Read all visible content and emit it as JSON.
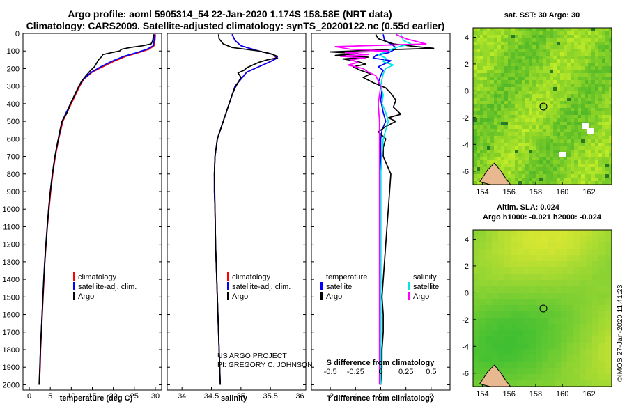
{
  "header": {
    "title_line1": "Argo profile: aoml 5905314_54 22-Jan-2020 1.174S 158.58E (NRT data)",
    "title_line2": "Climatology: CARS2009. Satellite-adjusted climatology: synTS_20200122.nc (0.55d earlier)"
  },
  "credits": {
    "project": "US ARGO PROJECT",
    "pi": "PI: GREGORY C. JOHNSON",
    "imos": "©IMOS 27-Jan-2020 11:41:23"
  },
  "colors": {
    "red": "#ff0000",
    "blue": "#0000ff",
    "black": "#000000",
    "cyan": "#00e5e5",
    "magenta": "#ff00ff"
  },
  "depth_axis": {
    "ticks": [
      0,
      100,
      200,
      300,
      400,
      500,
      600,
      700,
      800,
      900,
      1000,
      1100,
      1200,
      1300,
      1400,
      1500,
      1600,
      1700,
      1800,
      1900,
      2000
    ],
    "range": [
      0,
      2030
    ]
  },
  "chart_data": [
    {
      "type": "line",
      "name": "temperature-panel",
      "xlabel": "temperature (deg C)",
      "xlim": [
        -1.5,
        31.5
      ],
      "xticks": [
        0,
        5,
        10,
        15,
        20,
        25,
        30
      ],
      "legend": [
        "climatology",
        "satellite-adj. clim.",
        "Argo"
      ],
      "series": [
        {
          "name": "climatology",
          "color": "red",
          "depth": [
            5,
            40,
            70,
            90,
            110,
            130,
            160,
            190,
            220,
            260,
            300,
            350,
            400,
            450,
            500,
            550,
            600,
            700,
            800,
            900,
            1000,
            1100,
            1200,
            1300,
            1400,
            1500,
            1600,
            1700,
            1800,
            1900,
            2000
          ],
          "values": [
            30,
            29.9,
            29.7,
            28.5,
            26,
            23,
            20,
            17.5,
            15,
            13,
            12,
            11,
            10,
            9,
            8,
            7.5,
            7,
            6.2,
            5.6,
            5.1,
            4.7,
            4.3,
            4.0,
            3.7,
            3.5,
            3.3,
            3.1,
            2.9,
            2.7,
            2.6,
            2.4
          ]
        },
        {
          "name": "satellite-adj. clim.",
          "color": "blue",
          "depth": [
            5,
            40,
            70,
            90,
            110,
            130,
            160,
            190,
            220,
            260,
            300,
            350,
            400,
            450,
            500,
            550,
            600,
            700,
            800,
            900,
            1000,
            1100,
            1200,
            1300,
            1400,
            1500,
            1600,
            1700,
            1800,
            1900,
            2000
          ],
          "values": [
            29.8,
            29.7,
            29.5,
            28,
            25.5,
            22.5,
            19.5,
            17,
            14.8,
            12.9,
            11.8,
            10.8,
            9.8,
            8.8,
            7.8,
            7.4,
            6.9,
            6.1,
            5.5,
            5.0,
            4.6,
            4.25,
            3.95,
            3.65,
            3.45,
            3.25,
            3.05,
            2.85,
            2.65,
            2.55,
            2.35
          ]
        },
        {
          "name": "Argo",
          "color": "black",
          "depth": [
            5,
            20,
            40,
            60,
            70,
            80,
            90,
            100,
            110,
            120,
            130,
            150,
            170,
            190,
            210,
            240,
            270,
            300,
            350,
            400,
            450,
            500,
            550,
            600,
            700,
            800,
            900,
            1000,
            1200,
            1400,
            1600,
            1800,
            2000
          ],
          "values": [
            29.6,
            29.5,
            29.4,
            29.0,
            27,
            24,
            22,
            21.5,
            19.5,
            17.5,
            17.3,
            16.5,
            16,
            15.5,
            14.6,
            13.5,
            12.5,
            11.8,
            10.8,
            9.8,
            9.0,
            7.8,
            7.3,
            6.9,
            6.1,
            5.5,
            5.0,
            4.6,
            3.95,
            3.45,
            3.05,
            2.65,
            2.35
          ]
        }
      ]
    },
    {
      "type": "line",
      "name": "salinity-panel",
      "xlabel": "salinity",
      "xlim": [
        33.75,
        36.1
      ],
      "xticks": [
        34,
        34.5,
        35,
        35.5,
        36
      ],
      "legend": [
        "climatology",
        "satellite-adj. clim.",
        "Argo"
      ],
      "series": [
        {
          "name": "climatology",
          "color": "red",
          "depth": [
            5,
            40,
            70,
            100,
            120,
            140,
            160,
            190,
            220,
            260,
            300,
            350,
            400,
            450,
            500,
            550,
            600,
            700,
            800,
            900,
            1000,
            1200,
            1400,
            1600,
            1800,
            2000
          ],
          "values": [
            34.85,
            34.9,
            35.0,
            35.3,
            35.55,
            35.6,
            35.5,
            35.3,
            35.1,
            35.0,
            34.9,
            34.85,
            34.8,
            34.75,
            34.7,
            34.65,
            34.6,
            34.56,
            34.55,
            34.55,
            34.56,
            34.57,
            34.59,
            34.61,
            34.63,
            34.65
          ]
        },
        {
          "name": "satellite-adj. clim.",
          "color": "blue",
          "depth": [
            5,
            40,
            70,
            100,
            120,
            140,
            160,
            190,
            220,
            260,
            300,
            350,
            400,
            450,
            500,
            550,
            600,
            700,
            800,
            900,
            1000,
            1200,
            1400,
            1600,
            1800,
            2000
          ],
          "values": [
            34.85,
            34.9,
            35.0,
            35.3,
            35.55,
            35.62,
            35.5,
            35.3,
            35.1,
            35.0,
            34.9,
            34.85,
            34.8,
            34.75,
            34.7,
            34.65,
            34.6,
            34.56,
            34.55,
            34.55,
            34.56,
            34.57,
            34.59,
            34.61,
            34.63,
            34.65
          ]
        },
        {
          "name": "Argo",
          "color": "black",
          "depth": [
            5,
            30,
            60,
            80,
            100,
            115,
            130,
            140,
            150,
            165,
            180,
            195,
            210,
            225,
            250,
            280,
            310,
            350,
            400,
            450,
            500,
            600,
            700,
            800,
            1000,
            1200,
            1400,
            1600,
            1800,
            2000
          ],
          "values": [
            34.62,
            34.63,
            34.7,
            34.85,
            35.3,
            35.5,
            35.62,
            35.6,
            35.45,
            35.3,
            35.2,
            35.1,
            35.05,
            34.95,
            35.0,
            34.95,
            34.9,
            34.85,
            34.8,
            34.75,
            34.7,
            34.6,
            34.56,
            34.55,
            34.56,
            34.57,
            34.59,
            34.61,
            34.63,
            34.65
          ]
        }
      ]
    },
    {
      "type": "line",
      "name": "difference-panel",
      "xlabel": "T difference from climatology",
      "xlabel_top": "S difference from climatology",
      "xlim": [
        -2.75,
        2.75
      ],
      "xticks": [
        -2,
        -1,
        0,
        1,
        2
      ],
      "xticks_salinity": [
        "-0.5",
        "-0.25",
        "0",
        "0.25",
        "0.5"
      ],
      "legend_temperature_title": "temperature",
      "legend_salinity_title": "salinity",
      "legend_temperature": [
        "satellite",
        "Argo"
      ],
      "legend_salinity": [
        "satellite",
        "Argo"
      ],
      "series": [
        {
          "name": "T satellite",
          "color": "blue",
          "depth": [
            5,
            40,
            60,
            80,
            95,
            110,
            125,
            140,
            155,
            170,
            190,
            210,
            240,
            280,
            320,
            380,
            450,
            500,
            550,
            600,
            700,
            800,
            1000,
            1200,
            1400,
            1600,
            1800,
            2000
          ],
          "values": [
            0.1,
            0.15,
            0.4,
            0.6,
            0.5,
            0.3,
            -0.2,
            -0.3,
            0.4,
            0.2,
            -0.1,
            0.1,
            0.0,
            -0.1,
            0.05,
            0.0,
            0.1,
            0.2,
            0.05,
            0.0,
            0.0,
            0.0,
            0.0,
            0.0,
            0.0,
            0.0,
            0.0,
            0.0
          ]
        },
        {
          "name": "T Argo",
          "color": "black",
          "depth": [
            5,
            30,
            60,
            75,
            85,
            95,
            105,
            115,
            125,
            135,
            145,
            160,
            175,
            190,
            210,
            230,
            250,
            280,
            310,
            340,
            380,
            420,
            460,
            480,
            500,
            530,
            560,
            600,
            650,
            700,
            800,
            900,
            1000,
            1100,
            1200,
            1300,
            1400,
            1500,
            1600,
            1700,
            1800,
            1900,
            2000
          ],
          "values": [
            -0.2,
            -0.1,
            0.5,
            1.4,
            2.1,
            -0.3,
            -2.0,
            -0.9,
            -1.8,
            -0.5,
            -1.5,
            -0.9,
            -0.6,
            -1.1,
            -0.8,
            -0.4,
            -0.7,
            -0.3,
            0.2,
            0.4,
            0.6,
            0.5,
            0.8,
            0.3,
            0.6,
            0.2,
            -0.1,
            0.2,
            0.1,
            0.1,
            0.4,
            0.35,
            0.3,
            0.25,
            0.2,
            0.15,
            0.1,
            0.05,
            0.1,
            0.1,
            0.05,
            0.05,
            0.0
          ]
        },
        {
          "name": "S satellite",
          "color": "cyan",
          "depth": [
            5,
            40,
            60,
            80,
            100,
            120,
            140,
            160,
            180,
            200,
            230,
            260,
            300,
            350,
            400,
            450,
            500,
            600,
            800,
            1000,
            1500,
            2000
          ],
          "values": [
            0.8,
            0.9,
            1.2,
            0.6,
            0.3,
            -0.1,
            0.2,
            0.1,
            0.5,
            0.2,
            0.1,
            0.05,
            0.0,
            0.1,
            0.05,
            0.2,
            0.3,
            0.1,
            0.0,
            0.0,
            0.0,
            0.0
          ]
        },
        {
          "name": "S Argo",
          "color": "magenta",
          "depth": [
            5,
            30,
            60,
            75,
            90,
            100,
            110,
            120,
            130,
            140,
            150,
            165,
            180,
            200,
            220,
            240,
            270,
            300,
            350,
            400,
            500,
            600,
            800,
            1000,
            1200,
            1400,
            1600,
            1800,
            2000
          ],
          "values": [
            0.6,
            1.0,
            1.8,
            -1.8,
            -1.2,
            0.3,
            -1.4,
            -0.5,
            -1.6,
            -0.6,
            -1.2,
            -0.9,
            -1.3,
            -0.7,
            -0.5,
            -0.2,
            -0.1,
            0.0,
            -0.05,
            -0.1,
            -0.05,
            -0.05,
            -0.05,
            -0.05,
            -0.05,
            -0.05,
            -0.05,
            -0.05,
            -0.05
          ]
        }
      ]
    }
  ],
  "maps": [
    {
      "title": "sat. SST: 30 Argo: 30",
      "xticks": [
        "154",
        "156",
        "158",
        "160",
        "162"
      ],
      "yticks": [
        "4",
        "2",
        "0",
        "-2",
        "-4",
        "-6"
      ],
      "float_lon": 158.58,
      "float_lat": -1.174,
      "lon_range": [
        153.3,
        163.7
      ],
      "lat_range": [
        -7,
        4.7
      ]
    },
    {
      "title_line1": "Altim. SLA: 0.024",
      "title_line2": "Argo h1000: -0.021 h2000: -0.024",
      "xticks": [
        "154",
        "156",
        "158",
        "160",
        "162"
      ],
      "yticks": [
        "4",
        "2",
        "0",
        "-2",
        "-4",
        "-6"
      ],
      "float_lon": 158.58,
      "float_lat": -1.174,
      "lon_range": [
        153.3,
        163.7
      ],
      "lat_range": [
        -7,
        4.7
      ]
    }
  ]
}
